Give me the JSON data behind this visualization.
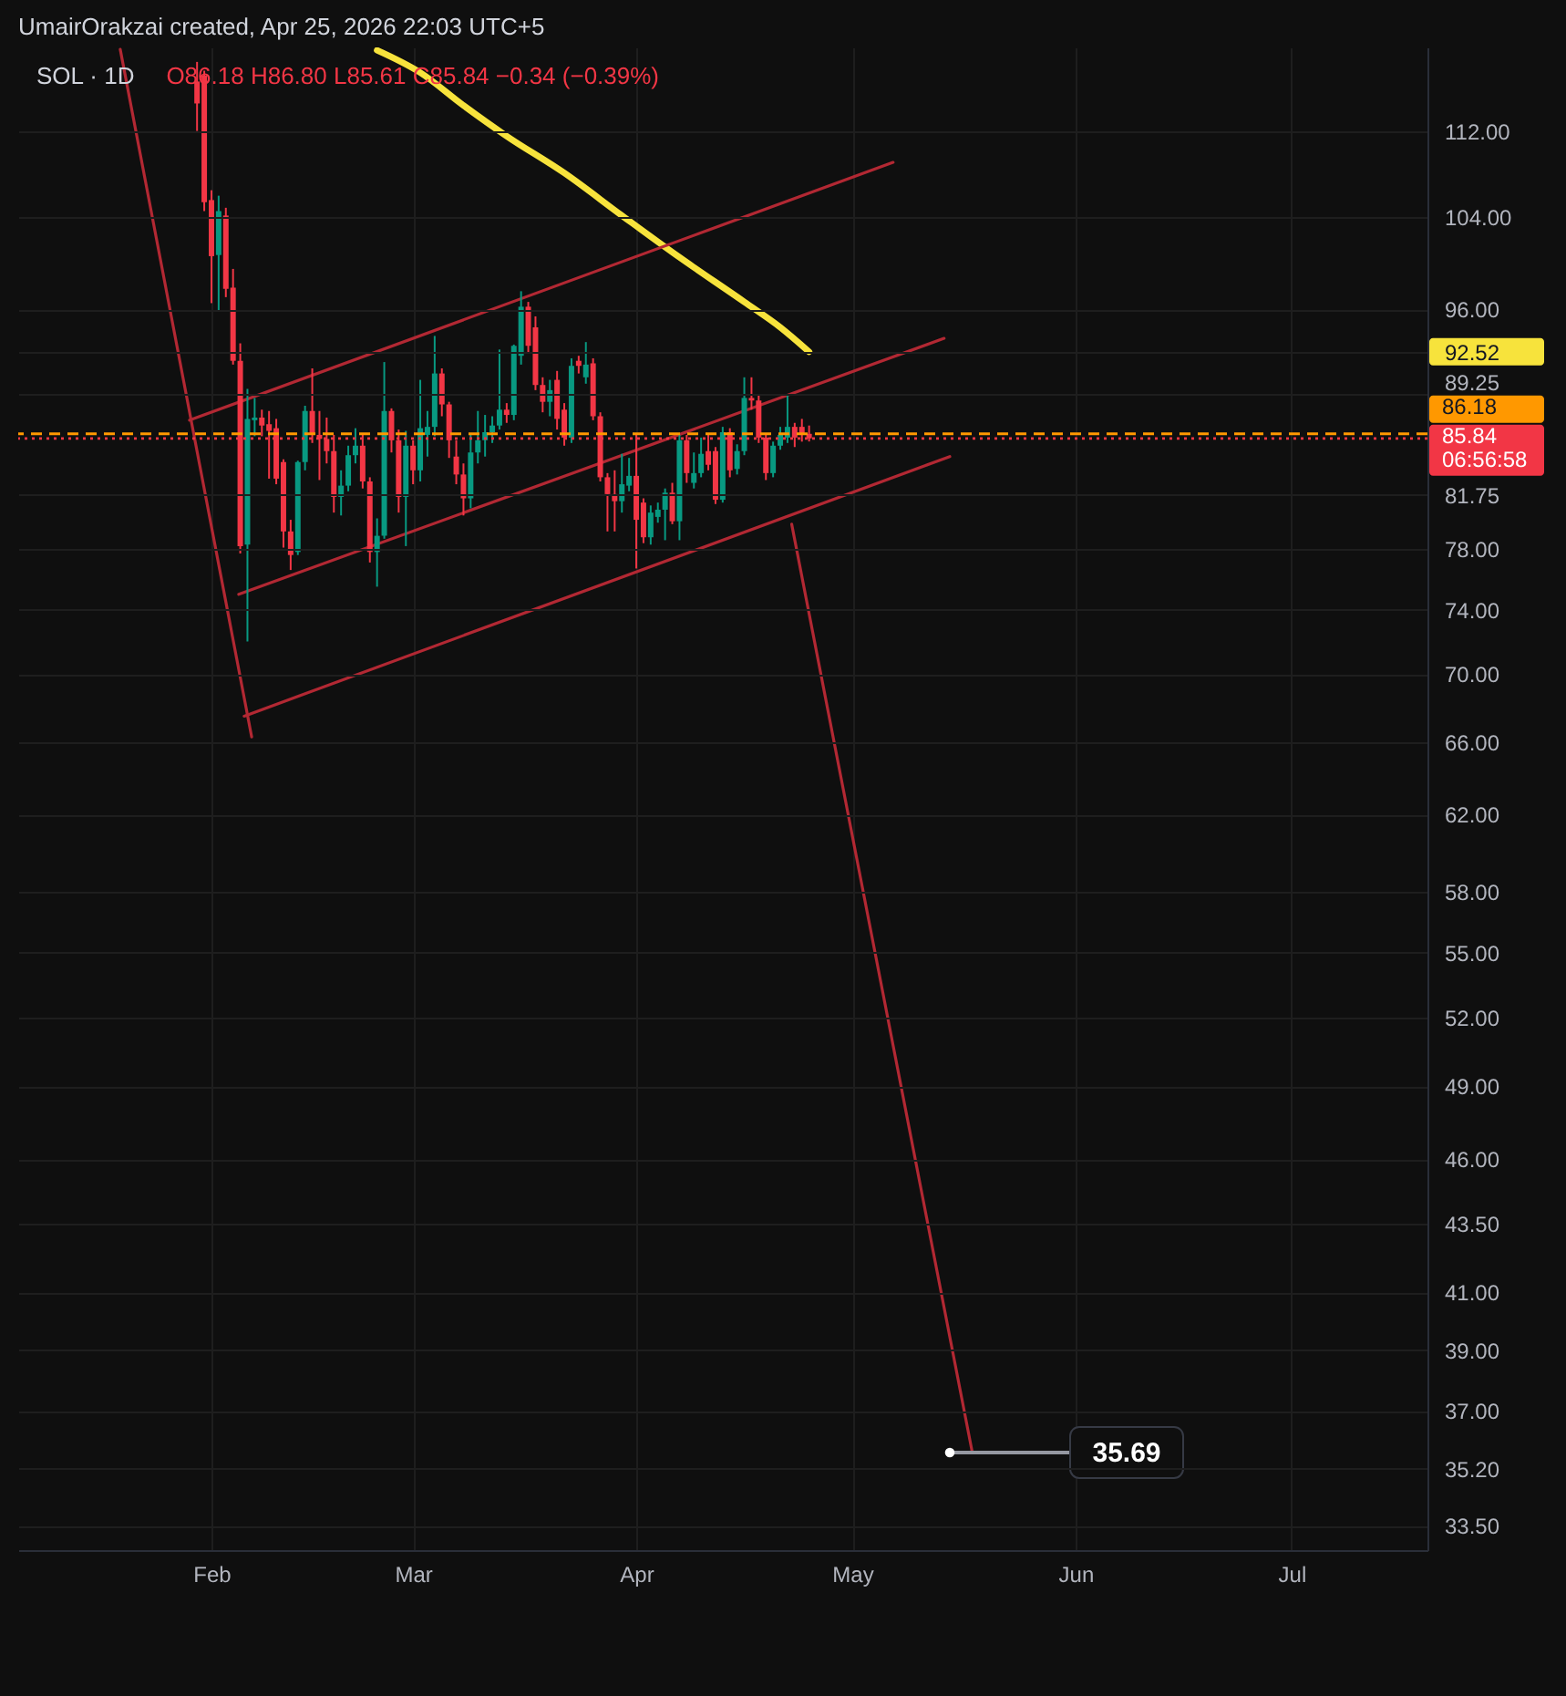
{
  "chart_data": {
    "type": "candlestick",
    "title": "SOL · 1D",
    "subtitle": "UmairOrakzai created, Apr 25, 2026 22:03 UTC+5",
    "annotations": [
      "O86.18 H86.80 L85.61 C85.84 −0.34 (−0.39%)",
      {
        "text": "35.69",
        "x": "2026-05-14T13:00",
        "y": 35.69
      }
    ],
    "xlim": [
      "2026-01-05T04:00",
      "2026-07-19T21:00"
    ],
    "xticks": [
      {
        "value": "2026-02-01",
        "label": "Feb"
      },
      {
        "value": "2026-03-01",
        "label": "Mar"
      },
      {
        "value": "2026-04-01",
        "label": "Apr"
      },
      {
        "value": "2026-05-01",
        "label": "May"
      },
      {
        "value": "2026-06-01",
        "label": "Jun"
      },
      {
        "value": "2026-07-01",
        "label": "Jul"
      }
    ],
    "ylim": [
      32.8,
      120.4
    ],
    "log": true,
    "yticks": [
      {
        "value": 112,
        "label": "112.00"
      },
      {
        "value": 104,
        "label": "104.00"
      },
      {
        "value": 96,
        "label": "96.00"
      },
      92.52,
      89.25,
      81.75,
      {
        "value": 78,
        "label": "78.00"
      },
      {
        "value": 74,
        "label": "74.00"
      },
      {
        "value": 70,
        "label": "70.00"
      },
      {
        "value": 66,
        "label": "66.00"
      },
      {
        "value": 62,
        "label": "62.00"
      },
      {
        "value": 58,
        "label": "58.00"
      },
      {
        "value": 55,
        "label": "55.00"
      },
      {
        "value": 52,
        "label": "52.00"
      },
      {
        "value": 49,
        "label": "49.00"
      },
      {
        "value": 46,
        "label": "46.00"
      },
      {
        "value": 43.5,
        "label": "43.50"
      },
      {
        "value": 41,
        "label": "41.00"
      },
      {
        "value": 39,
        "label": "39.00"
      },
      {
        "value": 37,
        "label": "37.00"
      },
      {
        "value": 35.2,
        "label": "35.20"
      },
      {
        "value": 33.5,
        "label": "33.50"
      }
    ],
    "grid": true,
    "ref_lines": [
      {
        "axis": "y",
        "value": 86.18,
        "label": "86.18",
        "color": "#ff9800",
        "line_style": "dashed"
      },
      {
        "axis": "y",
        "value": 85.84,
        "label": "85.84\n06:56:58",
        "color": "#f23645",
        "line_style": "dotted"
      }
    ],
    "series": [
      {
        "x": [
          "2026-01-30",
          "2026-01-31",
          "2026-02-01",
          "2026-02-02",
          "2026-02-03",
          "2026-02-04",
          "2026-02-05",
          "2026-02-06",
          "2026-02-07",
          "2026-02-08",
          "2026-02-09",
          "2026-02-10",
          "2026-02-11",
          "2026-02-12",
          "2026-02-13",
          "2026-02-14",
          "2026-02-15",
          "2026-02-16",
          "2026-02-17",
          "2026-02-18",
          "2026-02-19",
          "2026-02-20",
          "2026-02-21",
          "2026-02-22",
          "2026-02-23",
          "2026-02-24",
          "2026-02-25",
          "2026-02-26",
          "2026-02-27",
          "2026-02-28",
          "2026-03-01",
          "2026-03-02",
          "2026-03-03",
          "2026-03-04",
          "2026-03-05",
          "2026-03-06",
          "2026-03-07",
          "2026-03-08",
          "2026-03-09",
          "2026-03-10",
          "2026-03-11",
          "2026-03-12",
          "2026-03-13",
          "2026-03-14",
          "2026-03-15",
          "2026-03-16",
          "2026-03-17",
          "2026-03-18",
          "2026-03-19",
          "2026-03-20",
          "2026-03-21",
          "2026-03-22",
          "2026-03-23",
          "2026-03-24",
          "2026-03-25",
          "2026-03-26",
          "2026-03-27",
          "2026-03-28",
          "2026-03-29",
          "2026-03-30",
          "2026-03-31",
          "2026-04-01",
          "2026-04-02",
          "2026-04-03",
          "2026-04-04",
          "2026-04-05",
          "2026-04-06",
          "2026-04-07",
          "2026-04-08",
          "2026-04-09",
          "2026-04-10",
          "2026-04-11",
          "2026-04-12",
          "2026-04-13",
          "2026-04-14",
          "2026-04-15",
          "2026-04-16",
          "2026-04-17",
          "2026-04-18",
          "2026-04-19",
          "2026-04-20",
          "2026-04-21",
          "2026-04-22",
          "2026-04-23",
          "2026-04-24",
          "2026-04-25"
        ],
        "ohlc": [
          [
            116.9,
            118.9,
            112.0,
            114.7
          ],
          [
            117.5,
            118.0,
            104.5,
            105.3
          ],
          [
            105.5,
            106.4,
            96.5,
            100.5
          ],
          [
            100.6,
            105.9,
            95.8,
            104.5
          ],
          [
            104.1,
            104.8,
            97.0,
            97.7
          ],
          [
            97.8,
            99.4,
            91.5,
            91.8
          ],
          [
            91.8,
            93.2,
            77.7,
            78.2
          ],
          [
            78.3,
            89.6,
            72.0,
            87.3
          ],
          [
            87.2,
            88.9,
            86.0,
            87.4
          ],
          [
            87.4,
            88.0,
            86.0,
            86.8
          ],
          [
            86.9,
            87.9,
            82.9,
            86.4
          ],
          [
            86.6,
            87.3,
            82.5,
            82.9
          ],
          [
            84.1,
            84.3,
            78.1,
            79.2
          ],
          [
            79.2,
            80.0,
            76.6,
            77.6
          ],
          [
            77.8,
            84.2,
            77.6,
            84.1
          ],
          [
            84.1,
            88.3,
            83.5,
            87.9
          ],
          [
            87.9,
            91.2,
            85.5,
            86.1
          ],
          [
            86.1,
            87.9,
            82.8,
            85.8
          ],
          [
            85.8,
            87.4,
            84.0,
            84.9
          ],
          [
            84.9,
            86.1,
            80.5,
            81.6
          ],
          [
            81.6,
            83.5,
            80.3,
            82.4
          ],
          [
            82.4,
            85.3,
            82.0,
            84.6
          ],
          [
            84.6,
            86.6,
            84.0,
            85.3
          ],
          [
            85.3,
            86.1,
            82.2,
            82.7
          ],
          [
            82.7,
            83.0,
            77.1,
            77.8
          ],
          [
            77.8,
            80.1,
            75.5,
            78.9
          ],
          [
            78.9,
            91.7,
            78.7,
            87.9
          ],
          [
            87.9,
            88.1,
            84.8,
            85.7
          ],
          [
            85.7,
            86.5,
            80.5,
            81.6
          ],
          [
            81.6,
            86.4,
            78.2,
            85.3
          ],
          [
            85.3,
            85.7,
            82.5,
            83.5
          ],
          [
            83.5,
            90.3,
            82.7,
            86.6
          ],
          [
            86.1,
            87.9,
            84.5,
            86.7
          ],
          [
            86.7,
            93.8,
            86.0,
            90.8
          ],
          [
            90.8,
            91.2,
            87.5,
            88.4
          ],
          [
            88.4,
            88.6,
            84.4,
            85.7
          ],
          [
            84.5,
            85.7,
            82.5,
            83.2
          ],
          [
            83.2,
            84.0,
            80.3,
            81.5
          ],
          [
            81.5,
            86.1,
            80.8,
            84.8
          ],
          [
            84.8,
            87.9,
            84.0,
            85.7
          ],
          [
            85.7,
            87.6,
            84.5,
            86.3
          ],
          [
            86.3,
            87.5,
            85.5,
            86.8
          ],
          [
            86.8,
            92.7,
            86.5,
            88.0
          ],
          [
            88.0,
            88.5,
            87.0,
            87.6
          ],
          [
            87.6,
            93.1,
            87.2,
            93.0
          ],
          [
            92.2,
            97.5,
            91.5,
            96.2
          ],
          [
            96.2,
            96.6,
            92.5,
            93.0
          ],
          [
            94.5,
            95.4,
            89.5,
            89.9
          ],
          [
            89.9,
            90.5,
            87.8,
            88.6
          ],
          [
            88.6,
            90.3,
            87.5,
            89.5
          ],
          [
            90.3,
            91.0,
            86.5,
            87.3
          ],
          [
            88.0,
            88.5,
            85.3,
            85.9
          ],
          [
            85.9,
            92.0,
            85.5,
            91.4
          ],
          [
            91.8,
            92.2,
            90.8,
            91.4
          ],
          [
            90.5,
            93.3,
            90.0,
            91.5
          ],
          [
            91.6,
            92.0,
            87.2,
            87.5
          ],
          [
            87.5,
            87.8,
            82.7,
            83.0
          ],
          [
            83.0,
            83.3,
            79.2,
            81.8
          ],
          [
            81.8,
            83.5,
            79.2,
            81.3
          ],
          [
            81.3,
            84.7,
            80.5,
            82.5
          ],
          [
            82.4,
            84.4,
            82.0,
            83.1
          ],
          [
            83.1,
            86.1,
            76.7,
            80.0
          ],
          [
            81.2,
            81.5,
            78.4,
            78.8
          ],
          [
            78.8,
            81.0,
            78.3,
            80.5
          ],
          [
            80.2,
            81.2,
            79.8,
            80.7
          ],
          [
            80.7,
            82.2,
            78.6,
            81.9
          ],
          [
            81.9,
            82.6,
            79.7,
            79.9
          ],
          [
            79.9,
            86.1,
            78.6,
            85.7
          ],
          [
            85.7,
            86.1,
            82.6,
            83.3
          ],
          [
            82.6,
            84.8,
            82.2,
            83.3
          ],
          [
            83.3,
            85.9,
            83.0,
            84.7
          ],
          [
            84.9,
            86.1,
            83.5,
            83.9
          ],
          [
            84.9,
            85.2,
            81.1,
            81.4
          ],
          [
            81.4,
            86.7,
            81.2,
            86.3
          ],
          [
            86.3,
            86.6,
            83.0,
            83.5
          ],
          [
            83.6,
            85.4,
            83.2,
            84.9
          ],
          [
            84.9,
            90.5,
            84.6,
            88.9
          ],
          [
            88.9,
            90.5,
            88.0,
            88.7
          ],
          [
            88.7,
            89.1,
            85.5,
            85.9
          ],
          [
            85.9,
            86.1,
            82.8,
            83.3
          ],
          [
            83.3,
            85.6,
            83.0,
            85.3
          ],
          [
            85.3,
            86.7,
            85.0,
            86.1
          ],
          [
            85.9,
            89.2,
            85.5,
            86.7
          ],
          [
            86.7,
            87.0,
            85.2,
            85.9
          ],
          [
            86.7,
            87.3,
            85.6,
            86.18
          ],
          [
            86.18,
            86.8,
            85.61,
            85.84
          ]
        ],
        "colors": [
          "#f23645",
          "#f23645",
          "#f23645",
          "#089981",
          "#f23645",
          "#f23645",
          "#f23645",
          "#089981",
          "#089981",
          "#f23645",
          "#f23645",
          "#f23645",
          "#f23645",
          "#f23645",
          "#089981",
          "#089981",
          "#f23645",
          "#f23645",
          "#f23645",
          "#f23645",
          "#089981",
          "#089981",
          "#089981",
          "#f23645",
          "#f23645",
          "#089981",
          "#089981",
          "#f23645",
          "#f23645",
          "#089981",
          "#f23645",
          "#089981",
          "#089981",
          "#089981",
          "#f23645",
          "#f23645",
          "#f23645",
          "#f23645",
          "#089981",
          "#089981",
          "#089981",
          "#089981",
          "#089981",
          "#f23645",
          "#089981",
          "#089981",
          "#f23645",
          "#f23645",
          "#f23645",
          "#089981",
          "#f23645",
          "#f23645",
          "#089981",
          "#f23645",
          "#089981",
          "#f23645",
          "#f23645",
          "#f23645",
          "#f23645",
          "#089981",
          "#089981",
          "#f23645",
          "#f23645",
          "#089981",
          "#089981",
          "#089981",
          "#f23645",
          "#089981",
          "#f23645",
          "#089981",
          "#089981",
          "#f23645",
          "#f23645",
          "#089981",
          "#f23645",
          "#089981",
          "#089981",
          "#f23645",
          "#f23645",
          "#f23645",
          "#089981",
          "#089981",
          "#089981",
          "#f23645",
          "#f23645",
          "#f23645"
        ]
      },
      {
        "type": "line",
        "color": "#f7e33c",
        "x": [
          "2026-02-24",
          "2026-03-02",
          "2026-03-08",
          "2026-03-14",
          "2026-03-22",
          "2026-03-30",
          "2026-04-07",
          "2026-04-16",
          "2026-04-21",
          "2026-04-25"
        ],
        "values": [
          120.1,
          117.8,
          114.5,
          111.5,
          108.0,
          104.1,
          100.4,
          96.6,
          94.5,
          92.52
        ]
      },
      {
        "type": "line",
        "color": "#b22833",
        "x": [
          "2026-01-19T08:00",
          "2026-02-06T14:00"
        ],
        "values": [
          120.2,
          66.3
        ]
      },
      {
        "type": "line",
        "color": "#b22833",
        "x": [
          "2026-01-28T23:00",
          "2026-05-06T16:00"
        ],
        "values": [
          87.2,
          109.0
        ]
      },
      {
        "type": "line",
        "color": "#b22833",
        "x": [
          "2026-02-04T19:00",
          "2026-05-13T18:00"
        ],
        "values": [
          75.0,
          93.6
        ]
      },
      {
        "type": "line",
        "color": "#b22833",
        "x": [
          "2026-02-05T13:00",
          "2026-05-14T13:00"
        ],
        "values": [
          67.5,
          84.5
        ]
      },
      {
        "type": "line",
        "color": "#b22833",
        "x": [
          "2026-04-22T14:00",
          "2026-05-17T16:00"
        ],
        "values": [
          79.7,
          35.69
        ]
      }
    ]
  }
}
